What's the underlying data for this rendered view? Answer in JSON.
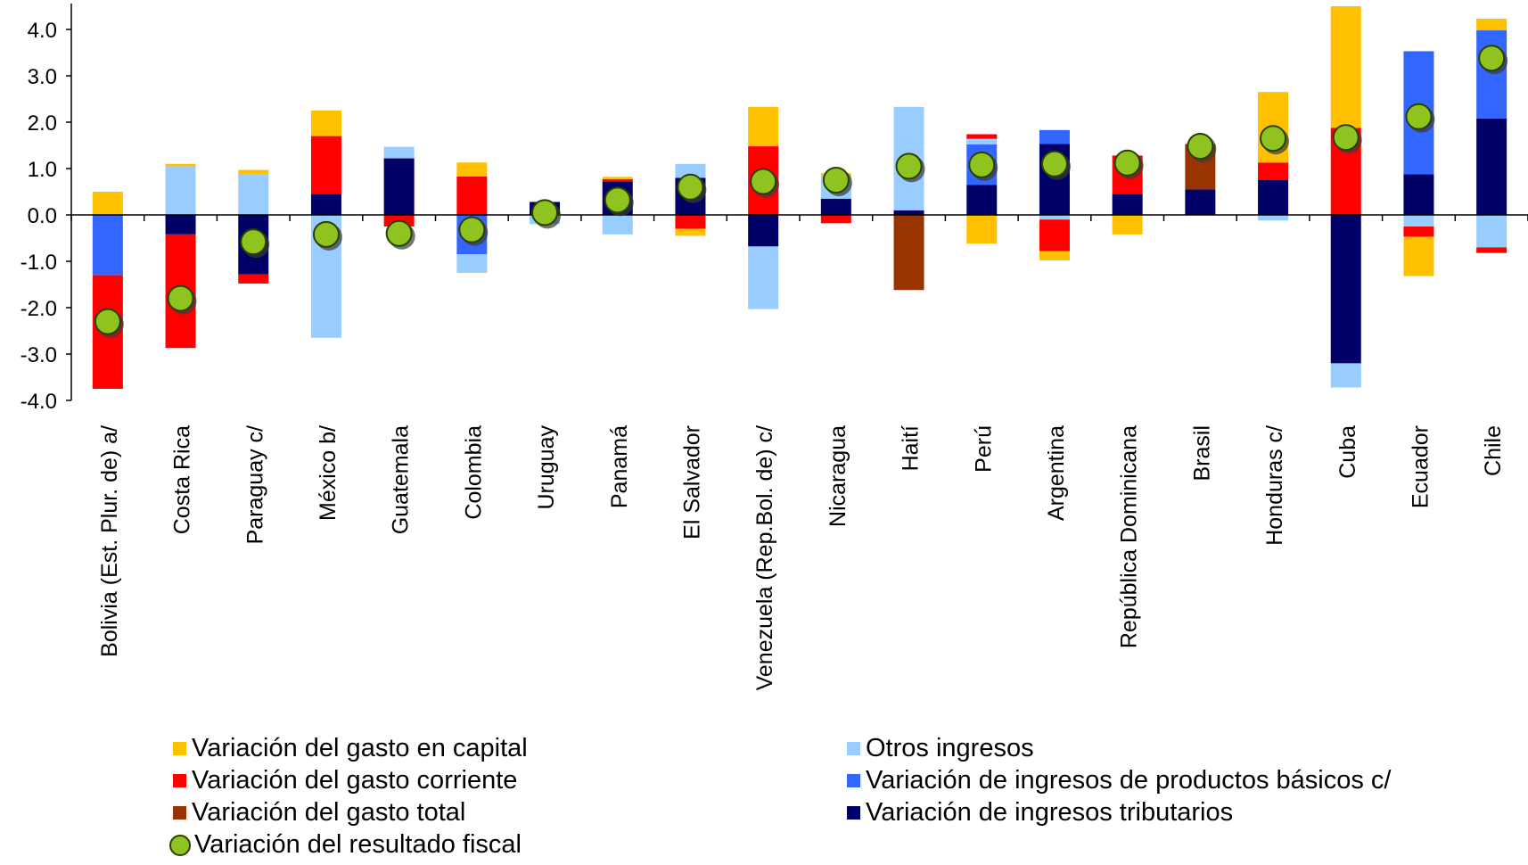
{
  "chart_data": {
    "type": "bar",
    "stacked": true,
    "title": "",
    "xlabel": "",
    "ylabel": "",
    "ylim": [
      -4.0,
      4.5
    ],
    "yticks": [
      4.0,
      3.0,
      2.0,
      1.0,
      0.0,
      -1.0,
      -2.0,
      -3.0,
      -4.0
    ],
    "ytick_labels": [
      "4.0",
      "3.0",
      "2.0",
      "1.0",
      "0.0",
      "-1.0",
      "-2.0",
      "-3.0",
      "-4.0"
    ],
    "grid": false,
    "legend_position": "bottom",
    "categories": [
      "Bolivia (Est. Plur. de) a/",
      "Costa Rica",
      "Paraguay c/",
      "México b/",
      "Guatemala",
      "Colombia",
      "Uruguay",
      "Panamá",
      "El Salvador",
      "Venezuela (Rep.Bol. de) c/",
      "Nicaragua",
      "Haití",
      "Perú",
      "Argentina",
      "República Dominicana",
      "Brasil",
      "Honduras c/",
      "Cuba",
      "Ecuador",
      "Chile"
    ],
    "series": [
      {
        "name": "Variación de ingresos tributarios",
        "color": "#000066",
        "values": [
          0,
          -0.42,
          -1.28,
          0.45,
          1.22,
          0,
          0.28,
          0.72,
          0.8,
          -0.68,
          0.35,
          0.1,
          0.65,
          1.53,
          0.45,
          0.55,
          0.75,
          -3.2,
          0.88,
          2.08
        ]
      },
      {
        "name": "Variación de ingresos de productos básicos c/",
        "color": "#3366ff",
        "values": [
          -1.3,
          0,
          0,
          0,
          0,
          -0.85,
          0,
          0,
          0,
          0,
          0,
          0,
          0.87,
          0.3,
          0,
          0,
          0,
          0,
          2.65,
          1.9
        ]
      },
      {
        "name": "Otros ingresos",
        "color": "#99ccff",
        "values": [
          0,
          1.05,
          0.87,
          -2.65,
          0.25,
          -0.4,
          -0.2,
          -0.42,
          0.3,
          -1.35,
          0.5,
          2.23,
          0.12,
          -0.1,
          0,
          0,
          -0.12,
          -0.52,
          -0.25,
          -0.7
        ]
      },
      {
        "name": "Variación del gasto corriente",
        "color": "#ff0000",
        "values": [
          -2.45,
          -2.45,
          -0.2,
          1.25,
          -0.25,
          0.83,
          0,
          0.05,
          -0.3,
          1.48,
          -0.18,
          0,
          0.1,
          -0.68,
          0.83,
          0,
          0.38,
          1.88,
          -0.22,
          -0.12
        ]
      },
      {
        "name": "Variación del gasto total",
        "color": "#993300",
        "values": [
          0,
          0,
          0,
          0,
          0,
          0,
          0,
          0,
          0,
          0,
          0,
          -1.62,
          0,
          0,
          0,
          0.98,
          0,
          0,
          0,
          0
        ]
      },
      {
        "name": "Variación del gasto en capital",
        "color": "#ffc000",
        "values": [
          0.5,
          0.05,
          0.1,
          0.55,
          0,
          0.3,
          0,
          0.05,
          -0.15,
          0.85,
          0.05,
          0,
          -0.62,
          -0.2,
          -0.42,
          0,
          1.52,
          2.62,
          -0.85,
          0.25
        ]
      }
    ],
    "markers": {
      "name": "Variación del resultado fiscal",
      "color": "#8fc31f",
      "values": [
        -2.3,
        -1.8,
        -0.58,
        -0.42,
        -0.4,
        -0.32,
        0.05,
        0.32,
        0.6,
        0.72,
        0.75,
        1.05,
        1.08,
        1.1,
        1.12,
        1.48,
        1.65,
        1.67,
        2.12,
        3.38
      ]
    },
    "legend": [
      {
        "label": "Variación del gasto en capital",
        "color": "#ffc000",
        "kind": "box"
      },
      {
        "label": "Variación del gasto corriente",
        "color": "#ff0000",
        "kind": "box"
      },
      {
        "label": "Variación del gasto total",
        "color": "#993300",
        "kind": "box"
      },
      {
        "label": "Variación del resultado fiscal",
        "color": "#8fc31f",
        "kind": "dot"
      },
      {
        "label": "Otros ingresos",
        "color": "#99ccff",
        "kind": "box"
      },
      {
        "label": "Variación de ingresos de productos básicos c/",
        "color": "#3366ff",
        "kind": "box"
      },
      {
        "label": "Variación de ingresos tributarios",
        "color": "#000066",
        "kind": "box"
      }
    ]
  }
}
